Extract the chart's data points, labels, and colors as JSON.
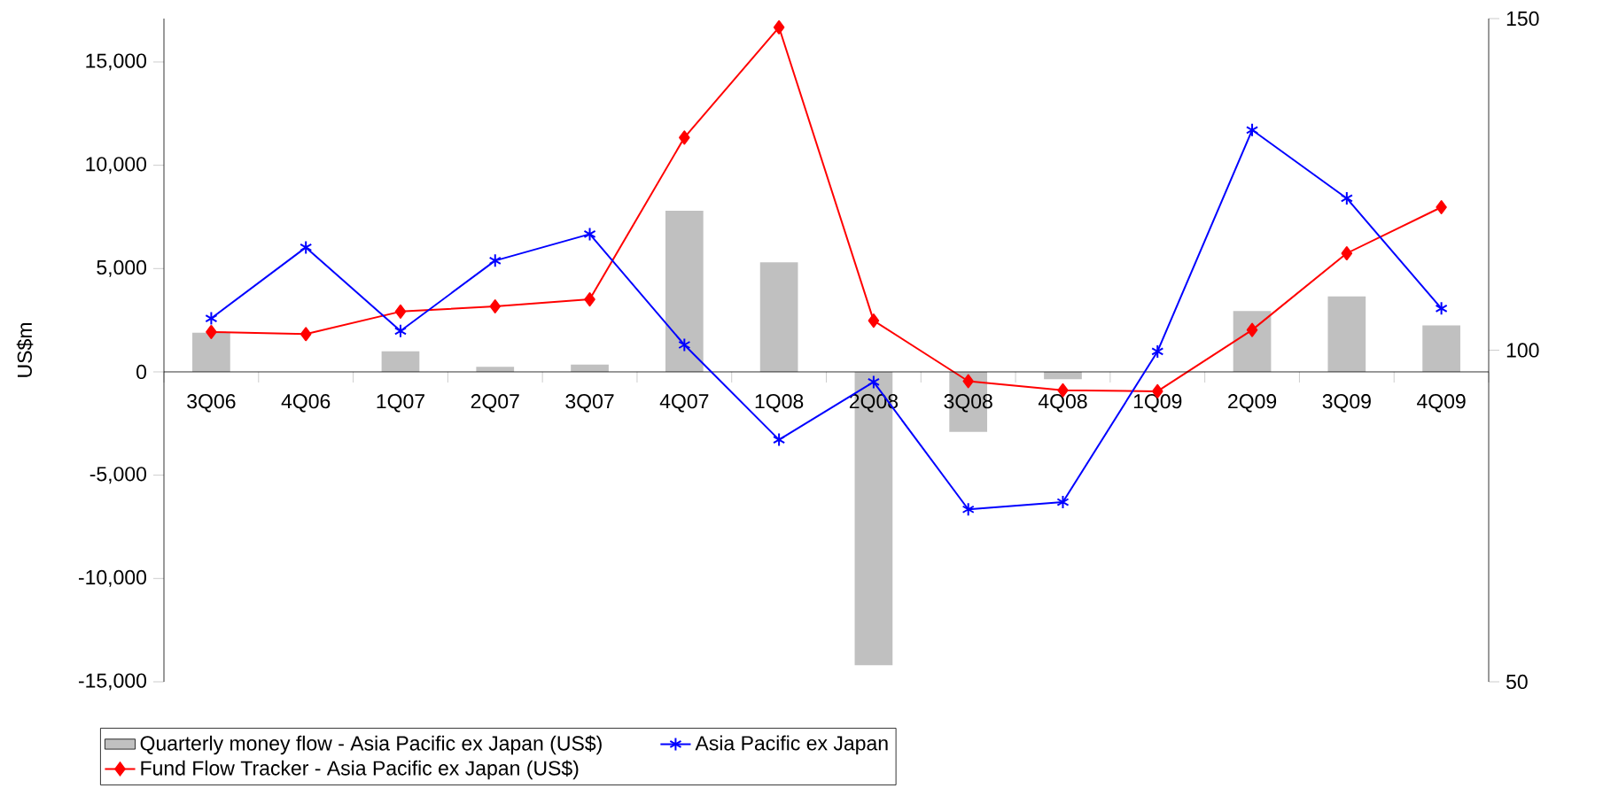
{
  "chart_data": {
    "type": "bar",
    "categories": [
      "3Q06",
      "4Q06",
      "1Q07",
      "2Q07",
      "3Q07",
      "4Q07",
      "1Q08",
      "2Q08",
      "3Q08",
      "4Q08",
      "1Q09",
      "2Q09",
      "3Q09",
      "4Q09"
    ],
    "series": [
      {
        "name": "Quarterly money flow - Asia Pacific ex Japan  (US$)",
        "color": "#c0c0c0",
        "values": [
          1900,
          0,
          1000,
          250,
          350,
          7800,
          5300,
          -14200,
          -2900,
          -350,
          0,
          2950,
          3650,
          2250
        ]
      },
      {
        "name": "Asia Pacific ex Japan",
        "type": "line",
        "axis": "y2",
        "color": "#0000ff",
        "marker": "cross",
        "values": [
          104.8,
          115.5,
          102.9,
          113.5,
          117.5,
          100.8,
          86.5,
          95.2,
          76.0,
          77.1,
          99.8,
          133.2,
          122.9,
          106.3
        ]
      },
      {
        "name": "Fund Flow Tracker - Asia Pacific ex Japan (US$)",
        "type": "line",
        "color": "#ff0000",
        "marker": "diamond",
        "values": [
          1930,
          1830,
          2920,
          3170,
          3510,
          11340,
          16680,
          2480,
          -450,
          -890,
          -940,
          2030,
          5740,
          7970
        ]
      }
    ],
    "ylabel": "US$m",
    "ylim": [
      -15000,
      17100
    ],
    "yticks": [
      {
        "value": -15000,
        "label": "-15,000"
      },
      {
        "value": -10000,
        "label": "-10,000"
      },
      {
        "value": -5000,
        "label": "-5,000"
      },
      {
        "value": 0,
        "label": "0"
      },
      {
        "value": 5000,
        "label": "5,000"
      },
      {
        "value": 10000,
        "label": "10,000"
      },
      {
        "value": 15000,
        "label": "15,000"
      }
    ],
    "y2lim": [
      50,
      150
    ],
    "y2ticks": [
      50,
      100,
      150
    ],
    "legend": "bottom",
    "grid": false
  }
}
